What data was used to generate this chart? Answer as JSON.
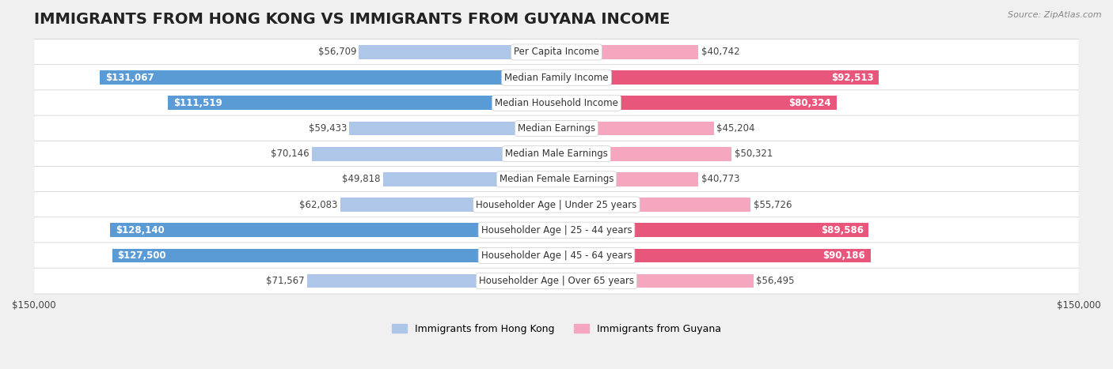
{
  "title": "IMMIGRANTS FROM HONG KONG VS IMMIGRANTS FROM GUYANA INCOME",
  "source": "Source: ZipAtlas.com",
  "categories": [
    "Per Capita Income",
    "Median Family Income",
    "Median Household Income",
    "Median Earnings",
    "Median Male Earnings",
    "Median Female Earnings",
    "Householder Age | Under 25 years",
    "Householder Age | 25 - 44 years",
    "Householder Age | 45 - 64 years",
    "Householder Age | Over 65 years"
  ],
  "hk_values": [
    56709,
    131067,
    111519,
    59433,
    70146,
    49818,
    62083,
    128140,
    127500,
    71567
  ],
  "gy_values": [
    40742,
    92513,
    80324,
    45204,
    50321,
    40773,
    55726,
    89586,
    90186,
    56495
  ],
  "hk_labels": [
    "$56,709",
    "$131,067",
    "$111,519",
    "$59,433",
    "$70,146",
    "$49,818",
    "$62,083",
    "$128,140",
    "$127,500",
    "$71,567"
  ],
  "gy_labels": [
    "$40,742",
    "$92,513",
    "$80,324",
    "$45,204",
    "$50,321",
    "$40,773",
    "$55,726",
    "$89,586",
    "$90,186",
    "$56,495"
  ],
  "hk_color_light": "#aec6e8",
  "hk_color_dark": "#5b9bd5",
  "gy_color_light": "#f4a7bf",
  "gy_color_dark": "#e9567b",
  "max_val": 150000,
  "background_color": "#f0f0f0",
  "row_bg_color": "#ffffff",
  "bar_height": 0.55,
  "title_fontsize": 14,
  "label_fontsize": 8.5,
  "category_fontsize": 8.5,
  "legend_fontsize": 9
}
